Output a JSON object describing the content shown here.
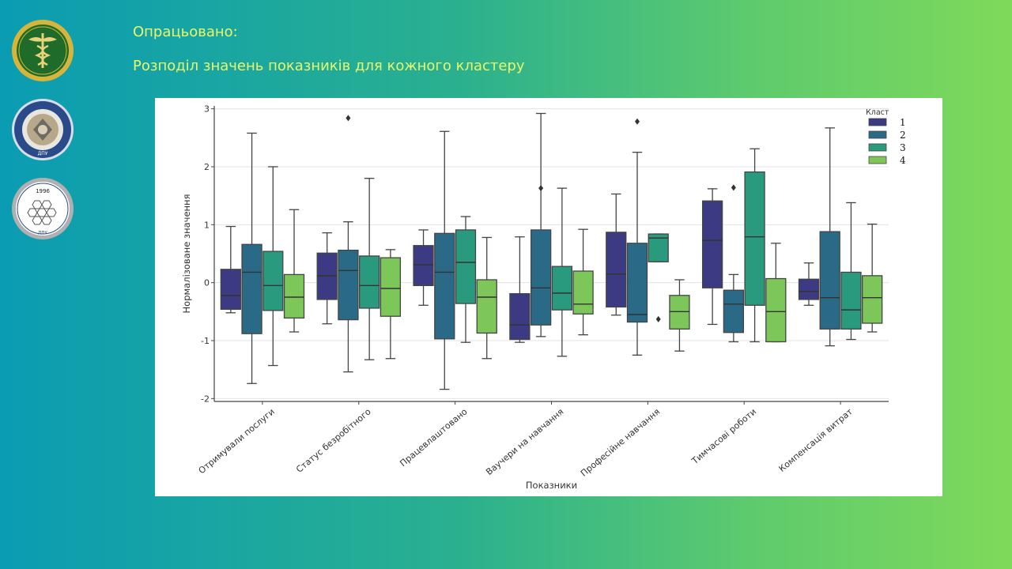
{
  "slide": {
    "heading": "Опрацьовано:",
    "subheading": "Розподіл значень показників для кожного кластеру"
  },
  "logos": [
    {
      "icon": "caduceus-emblem-icon",
      "colors": [
        "#1e6b2a",
        "#d6b53a"
      ]
    },
    {
      "icon": "university-seal-icon",
      "colors": [
        "#2a4a8a",
        "#c9c9c9"
      ],
      "text": "ДПУ"
    },
    {
      "icon": "faculty-seal-icon",
      "colors": [
        "#b0b0b0",
        "#2a4a8a"
      ],
      "text": "1996",
      "subtext": "ДПУ"
    }
  ],
  "chart_data": {
    "type": "box",
    "xlabel": "Показники",
    "ylabel": "Нормалізоване значення",
    "ylim": [
      -2.05,
      3.05
    ],
    "yticks": [
      -2,
      -1,
      0,
      1,
      2,
      3
    ],
    "grid": true,
    "legend": {
      "title": "Класт",
      "placement": "top-right",
      "entries": [
        "1",
        "2",
        "3",
        "4"
      ]
    },
    "colors": [
      "#3b3a82",
      "#2a6a86",
      "#2a9a7e",
      "#7cc65a"
    ],
    "categories": [
      "Отримували послуги",
      "Статус безробітного",
      "Працевлаштовано",
      "Ваучери на навчання",
      "Професійне навчання",
      "Тимчасові роботи",
      "Компенсація витрат"
    ],
    "series": [
      {
        "name": "1",
        "boxes": [
          {
            "min": -0.52,
            "q1": -0.46,
            "median": -0.22,
            "q3": 0.23,
            "max": 0.97,
            "outliers": []
          },
          {
            "min": -0.71,
            "q1": -0.29,
            "median": 0.12,
            "q3": 0.51,
            "max": 0.86,
            "outliers": []
          },
          {
            "min": -0.39,
            "q1": -0.05,
            "median": 0.31,
            "q3": 0.64,
            "max": 0.91,
            "outliers": []
          },
          {
            "min": -1.03,
            "q1": -0.98,
            "median": -0.73,
            "q3": -0.19,
            "max": 0.79,
            "outliers": []
          },
          {
            "min": -0.56,
            "q1": -0.42,
            "median": 0.15,
            "q3": 0.87,
            "max": 1.53,
            "outliers": []
          },
          {
            "min": -0.72,
            "q1": -0.09,
            "median": 0.73,
            "q3": 1.41,
            "max": 1.62,
            "outliers": []
          },
          {
            "min": -0.39,
            "q1": -0.29,
            "median": -0.15,
            "q3": 0.06,
            "max": 0.34,
            "outliers": []
          }
        ]
      },
      {
        "name": "2",
        "boxes": [
          {
            "min": -1.74,
            "q1": -0.88,
            "median": 0.18,
            "q3": 0.66,
            "max": 2.58,
            "outliers": []
          },
          {
            "min": -1.54,
            "q1": -0.64,
            "median": 0.21,
            "q3": 0.56,
            "max": 1.05,
            "outliers": [
              2.84
            ]
          },
          {
            "min": -1.84,
            "q1": -0.97,
            "median": 0.18,
            "q3": 0.85,
            "max": 2.61,
            "outliers": []
          },
          {
            "min": -0.93,
            "q1": -0.73,
            "median": -0.09,
            "q3": 0.91,
            "max": 2.92,
            "outliers": [
              1.63
            ]
          },
          {
            "min": -1.25,
            "q1": -0.68,
            "median": -0.55,
            "q3": 0.68,
            "max": 2.25,
            "outliers": [
              2.78
            ]
          },
          {
            "min": -1.02,
            "q1": -0.86,
            "median": -0.37,
            "q3": -0.13,
            "max": 0.14,
            "outliers": [
              1.64
            ]
          },
          {
            "min": -1.09,
            "q1": -0.8,
            "median": -0.26,
            "q3": 0.88,
            "max": 2.67,
            "outliers": []
          }
        ]
      },
      {
        "name": "3",
        "boxes": [
          {
            "min": -1.43,
            "q1": -0.48,
            "median": -0.05,
            "q3": 0.54,
            "max": 2.0,
            "outliers": []
          },
          {
            "min": -1.33,
            "q1": -0.44,
            "median": -0.05,
            "q3": 0.46,
            "max": 1.8,
            "outliers": []
          },
          {
            "min": -1.03,
            "q1": -0.36,
            "median": 0.35,
            "q3": 0.91,
            "max": 1.14,
            "outliers": []
          },
          {
            "min": -1.27,
            "q1": -0.47,
            "median": -0.18,
            "q3": 0.28,
            "max": 1.63,
            "outliers": []
          },
          {
            "min": 0.36,
            "q1": 0.36,
            "median": 0.77,
            "q3": 0.84,
            "max": 0.84,
            "outliers": [
              -0.63
            ]
          },
          {
            "min": -1.02,
            "q1": -0.39,
            "median": 0.79,
            "q3": 1.91,
            "max": 2.31,
            "outliers": []
          },
          {
            "min": -0.98,
            "q1": -0.8,
            "median": -0.47,
            "q3": 0.18,
            "max": 1.38,
            "outliers": []
          }
        ]
      },
      {
        "name": "4",
        "boxes": [
          {
            "min": -0.85,
            "q1": -0.61,
            "median": -0.25,
            "q3": 0.14,
            "max": 1.26,
            "outliers": []
          },
          {
            "min": -1.31,
            "q1": -0.58,
            "median": -0.1,
            "q3": 0.43,
            "max": 0.57,
            "outliers": []
          },
          {
            "min": -1.31,
            "q1": -0.87,
            "median": -0.25,
            "q3": 0.05,
            "max": 0.78,
            "outliers": []
          },
          {
            "min": -0.9,
            "q1": -0.54,
            "median": -0.37,
            "q3": 0.2,
            "max": 0.92,
            "outliers": []
          },
          {
            "min": -1.18,
            "q1": -0.8,
            "median": -0.5,
            "q3": -0.22,
            "max": 0.05,
            "outliers": []
          },
          {
            "min": -1.02,
            "q1": -1.02,
            "median": -0.5,
            "q3": 0.07,
            "max": 0.68,
            "outliers": []
          },
          {
            "min": -0.85,
            "q1": -0.7,
            "median": -0.26,
            "q3": 0.12,
            "max": 1.01,
            "outliers": []
          }
        ]
      }
    ]
  }
}
